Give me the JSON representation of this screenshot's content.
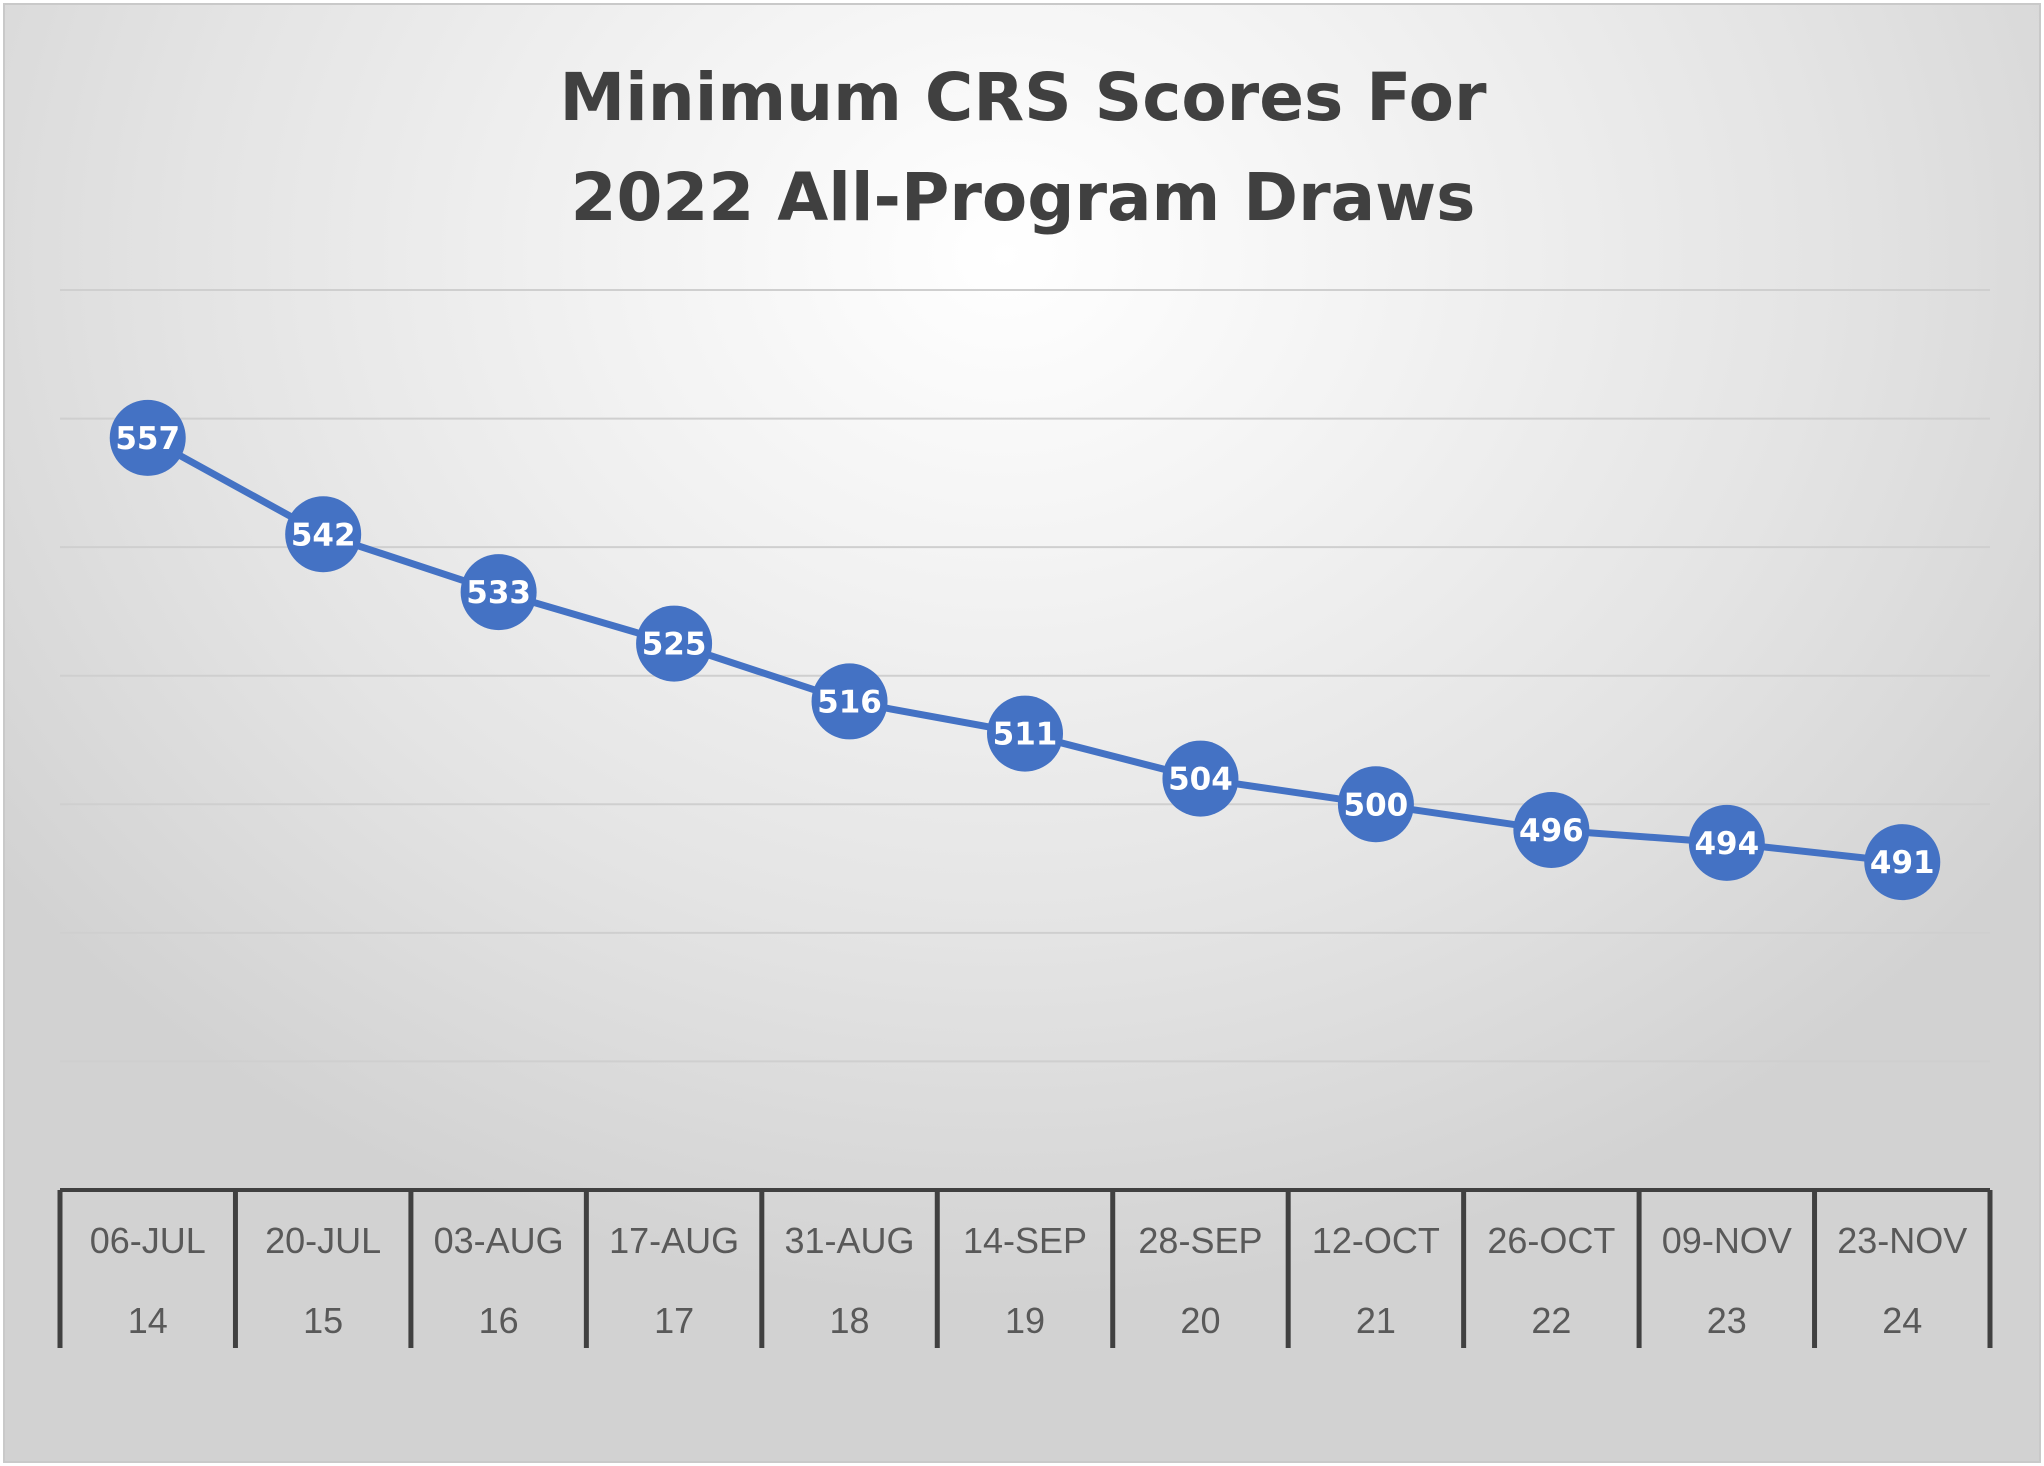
{
  "chart_data": {
    "type": "line",
    "title": "Minimum CRS Scores For 2022 All-Program Draws",
    "title_lines": [
      "Minimum CRS Scores For",
      "2022 All-Program Draws"
    ],
    "categories": [
      "06-JUL",
      "20-JUL",
      "03-AUG",
      "17-AUG",
      "31-AUG",
      "14-SEP",
      "28-SEP",
      "12-OCT",
      "26-OCT",
      "09-NOV",
      "23-NOV"
    ],
    "category_numbers": [
      "14",
      "15",
      "16",
      "17",
      "18",
      "19",
      "20",
      "21",
      "22",
      "23",
      "24"
    ],
    "series": [
      {
        "values": [
          557,
          542,
          533,
          525,
          516,
          511,
          504,
          500,
          496,
          494,
          491
        ]
      }
    ],
    "ylim": [
      440,
      580
    ],
    "gridline_step": 20,
    "grid": true,
    "data_labels": true,
    "legend": "none",
    "xlabel": "",
    "ylabel": "",
    "colors": {
      "line": "#4472C4",
      "marker": "#4472C4",
      "label_text": "#FFFFFF",
      "title": "#404040",
      "grid": "#D0D0D0"
    }
  }
}
